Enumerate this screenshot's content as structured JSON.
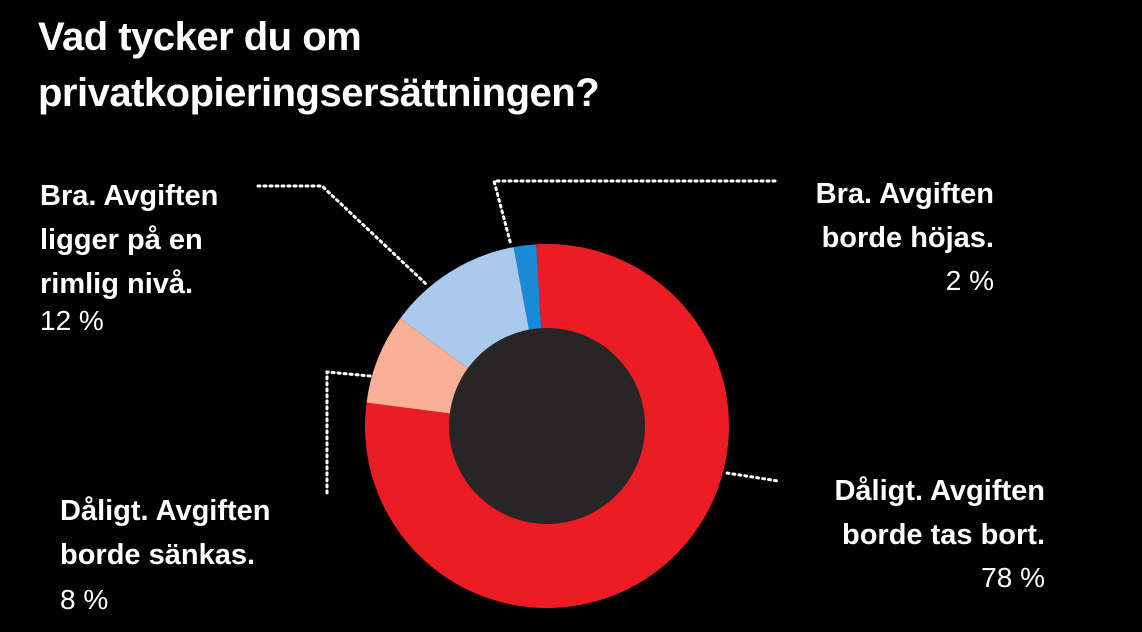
{
  "chart_data": {
    "type": "pie",
    "title_lines": [
      "Vad tycker du om",
      "privatkopieringsersättningen?"
    ],
    "slices": [
      {
        "id": "hojas",
        "label_lines": [
          "Bra. Avgiften",
          "borde höjas."
        ],
        "value": 2,
        "value_label": "2 %",
        "color": "#1a8ad6"
      },
      {
        "id": "tas-bort",
        "label_lines": [
          "Dåligt. Avgiften",
          "borde tas bort."
        ],
        "value": 78,
        "value_label": "78 %",
        "color": "#ec1c24"
      },
      {
        "id": "sankas",
        "label_lines": [
          "Dåligt. Avgiften",
          "borde sänkas."
        ],
        "value": 8,
        "value_label": "8 %",
        "color": "#f8af96"
      },
      {
        "id": "rimlig",
        "label_lines": [
          "Bra. Avgiften",
          "ligger på en",
          "rimlig nivå."
        ],
        "value": 12,
        "value_label": "12 %",
        "color": "#aac9ec"
      }
    ],
    "center_color": "#272526"
  }
}
